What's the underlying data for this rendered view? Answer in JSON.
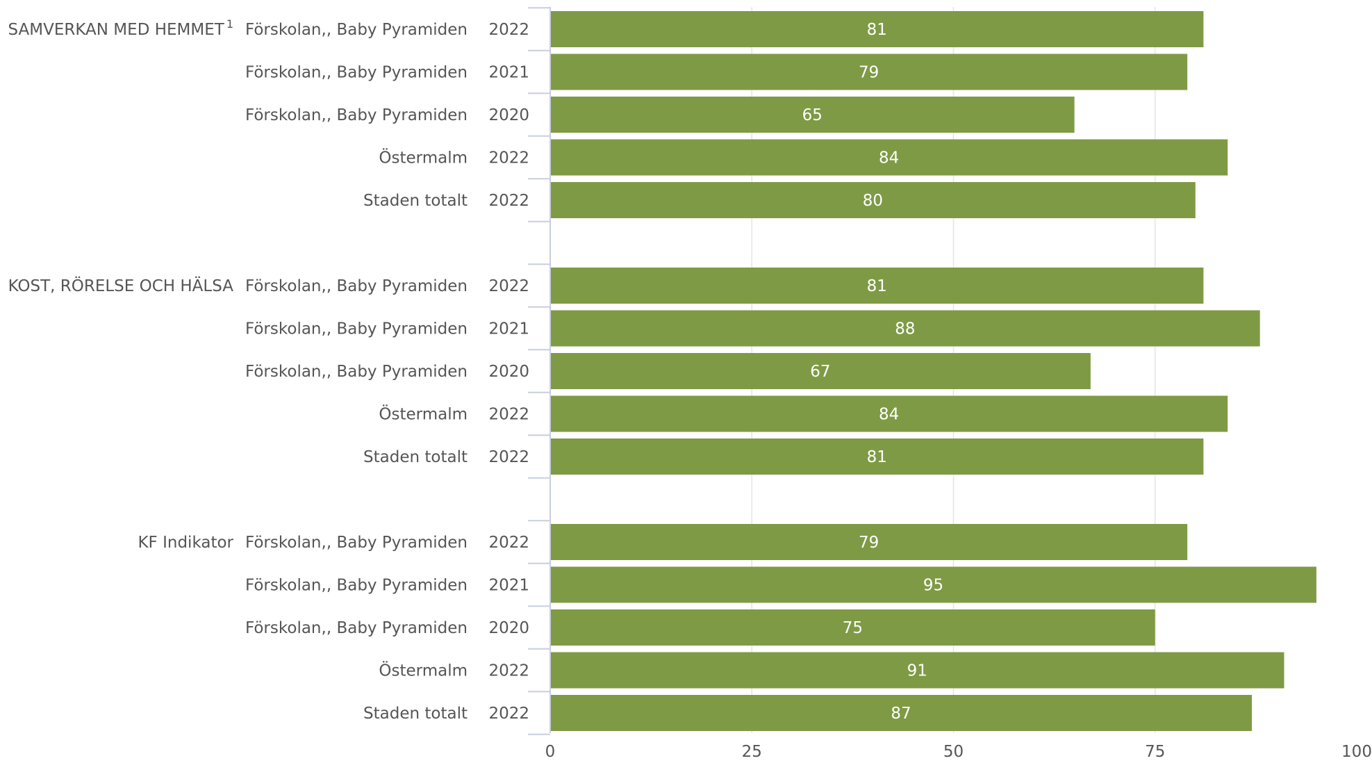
{
  "chart_data": {
    "type": "bar",
    "orientation": "horizontal",
    "xlim": [
      0,
      100
    ],
    "xticks": [
      "0",
      "25",
      "50",
      "75",
      "100"
    ],
    "grid": true,
    "color": "#7f9a45",
    "groups": [
      {
        "label": "SAMVERKAN MED HEMMET",
        "footnote": "1",
        "rows": [
          {
            "category": "Förskolan,, Baby Pyramiden",
            "year": "2022",
            "value": 81
          },
          {
            "category": "Förskolan,, Baby Pyramiden",
            "year": "2021",
            "value": 79
          },
          {
            "category": "Förskolan,, Baby Pyramiden",
            "year": "2020",
            "value": 65
          },
          {
            "category": "Östermalm",
            "year": "2022",
            "value": 84
          },
          {
            "category": "Staden totalt",
            "year": "2022",
            "value": 80
          }
        ]
      },
      {
        "label": "KOST, RÖRELSE OCH HÄLSA",
        "footnote": "",
        "rows": [
          {
            "category": "Förskolan,, Baby Pyramiden",
            "year": "2022",
            "value": 81
          },
          {
            "category": "Förskolan,, Baby Pyramiden",
            "year": "2021",
            "value": 88
          },
          {
            "category": "Förskolan,, Baby Pyramiden",
            "year": "2020",
            "value": 67
          },
          {
            "category": "Östermalm",
            "year": "2022",
            "value": 84
          },
          {
            "category": "Staden totalt",
            "year": "2022",
            "value": 81
          }
        ]
      },
      {
        "label": "KF Indikator",
        "footnote": "",
        "rows": [
          {
            "category": "Förskolan,, Baby Pyramiden",
            "year": "2022",
            "value": 79
          },
          {
            "category": "Förskolan,, Baby Pyramiden",
            "year": "2021",
            "value": 95
          },
          {
            "category": "Förskolan,, Baby Pyramiden",
            "year": "2020",
            "value": 75
          },
          {
            "category": "Östermalm",
            "year": "2022",
            "value": 91
          },
          {
            "category": "Staden totalt",
            "year": "2022",
            "value": 87
          }
        ]
      }
    ]
  }
}
